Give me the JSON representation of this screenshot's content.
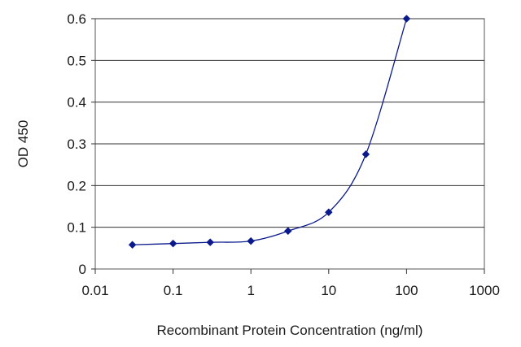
{
  "chart_data": {
    "type": "line",
    "title": "",
    "xlabel": "Recombinant Protein Concentration (ng/ml)",
    "ylabel": "OD 450",
    "x_scale": "log",
    "xlim": [
      0.01,
      1000
    ],
    "ylim": [
      0,
      0.6
    ],
    "x_ticks": [
      0.01,
      0.1,
      1,
      10,
      100,
      1000
    ],
    "x_tick_labels": [
      "0.01",
      "0.1",
      "1",
      "10",
      "100",
      "1000"
    ],
    "y_ticks": [
      0,
      0.1,
      0.2,
      0.3,
      0.4,
      0.5,
      0.6
    ],
    "y_tick_labels": [
      "0",
      "0.1",
      "0.2",
      "0.3",
      "0.4",
      "0.5",
      "0.6"
    ],
    "grid": "horizontal",
    "legend": "none",
    "series": [
      {
        "color": "#0a1a8c",
        "marker": "diamond",
        "points": [
          {
            "x": 0.03,
            "y": 0.058
          },
          {
            "x": 0.1,
            "y": 0.061
          },
          {
            "x": 0.3,
            "y": 0.064
          },
          {
            "x": 1,
            "y": 0.067
          },
          {
            "x": 3,
            "y": 0.091
          },
          {
            "x": 10,
            "y": 0.136
          },
          {
            "x": 30,
            "y": 0.275
          },
          {
            "x": 100,
            "y": 0.6
          }
        ]
      }
    ]
  }
}
